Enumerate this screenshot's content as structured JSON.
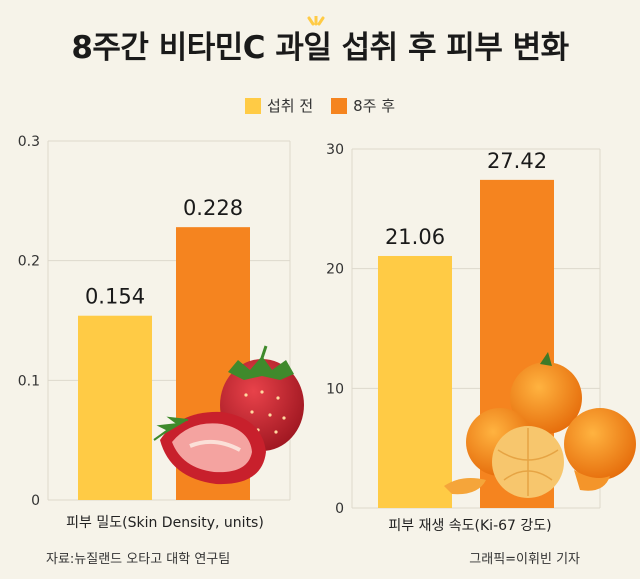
{
  "title": "8주간 비타민C 과일 섭취 후 피부 변화",
  "legend": {
    "before": {
      "label": "섭취 전",
      "color": "#ffcb45"
    },
    "after": {
      "label": "8주 후",
      "color": "#f5841f"
    },
    "placement": "top-center"
  },
  "chart_data": [
    {
      "type": "bar",
      "categories": [
        "섭취 전",
        "8주 후"
      ],
      "values": [
        0.154,
        0.228
      ],
      "value_labels": [
        "0.154",
        "0.228"
      ],
      "xlabel": "피부 밀도(Skin Density, units)",
      "ylim": [
        0,
        0.3
      ],
      "yticks": [
        "0",
        "0.1",
        "0.2",
        "0.3"
      ],
      "grid": true
    },
    {
      "type": "bar",
      "categories": [
        "섭취 전",
        "8주 후"
      ],
      "values": [
        21.06,
        27.42
      ],
      "value_labels": [
        "21.06",
        "27.42"
      ],
      "xlabel": "피부 재생 속도(Ki-67 강도)",
      "ylim": [
        0,
        30
      ],
      "yticks": [
        "0",
        "10",
        "20",
        "30"
      ],
      "grid": true
    }
  ],
  "footer": {
    "source": "자료:뉴질랜드 오타고 대학 연구팀",
    "credit": "그래픽=이휘빈 기자"
  },
  "illustrations": [
    "strawberry-illustration",
    "tangerine-illustration"
  ]
}
